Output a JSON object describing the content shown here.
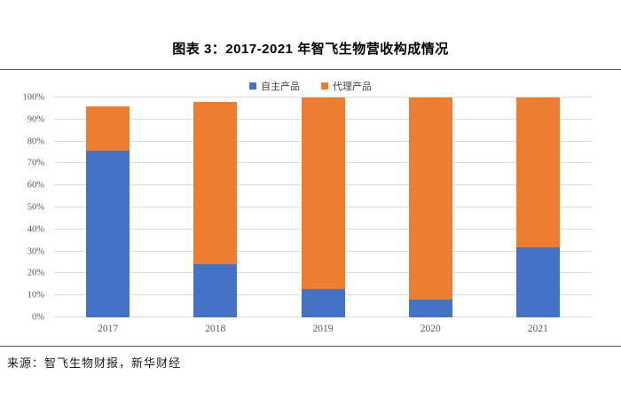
{
  "page": {
    "title": "图表 3：2017-2021 年智飞生物营收构成情况",
    "source": "来源：智飞生物财报，新华财经"
  },
  "chart_data": {
    "type": "bar",
    "stacked": true,
    "title": "图表 3：2017-2021 年智飞生物营收构成情况",
    "categories": [
      "2017",
      "2018",
      "2019",
      "2020",
      "2021"
    ],
    "series": [
      {
        "name": "自主产品",
        "key": "self-products",
        "color": "#4472C4",
        "values": [
          76,
          24,
          13,
          8,
          32
        ]
      },
      {
        "name": "代理产品",
        "key": "agency-products",
        "color": "#ED7D31",
        "values": [
          20,
          74,
          87,
          92,
          68
        ]
      }
    ],
    "totals": [
      96,
      98,
      100,
      100,
      100
    ],
    "xlabel": "",
    "ylabel": "",
    "ylim": [
      0,
      100
    ],
    "ytick_step": 10,
    "yticks": [
      "0%",
      "10%",
      "20%",
      "30%",
      "40%",
      "50%",
      "60%",
      "70%",
      "80%",
      "90%",
      "100%"
    ],
    "legend_position": "top",
    "grid": true,
    "gridline_color": "#dcdcdc",
    "axis_label_color": "#595959",
    "source_text": "来源：智飞生物财报，新华财经"
  }
}
